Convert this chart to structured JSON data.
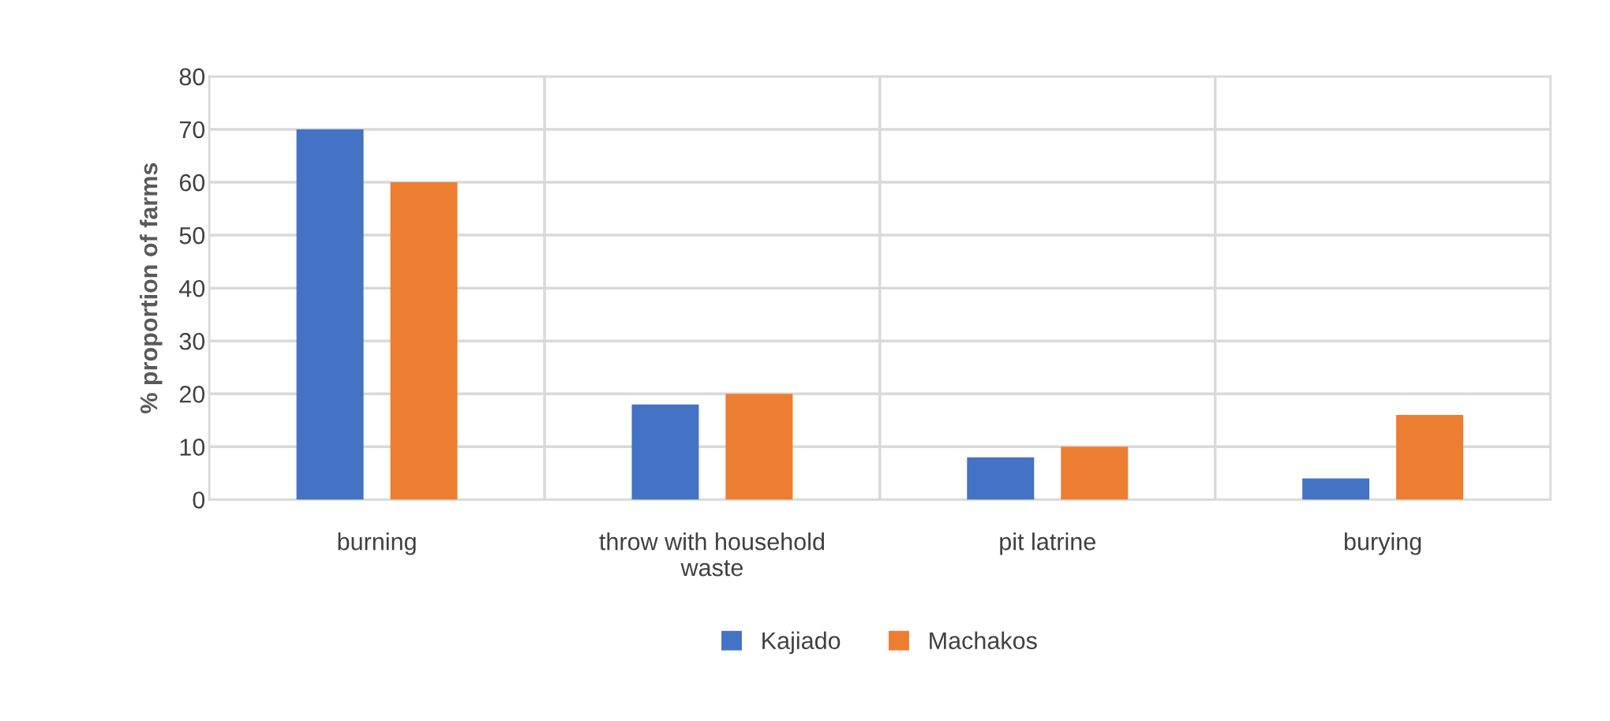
{
  "chart_data": {
    "type": "bar",
    "ylabel": "% proportion of farms",
    "categories": [
      "burning",
      "throw with household waste",
      "pit latrine",
      "burying"
    ],
    "series": [
      {
        "name": "Kajiado",
        "color": "#4472c4",
        "values": [
          70,
          18,
          8,
          4
        ]
      },
      {
        "name": "Machakos",
        "color": "#ed7d31",
        "values": [
          60,
          20,
          10,
          16
        ]
      }
    ],
    "ylim": [
      0,
      80
    ],
    "yticks": [
      0,
      10,
      20,
      30,
      40,
      50,
      60,
      70,
      80
    ],
    "grid": true,
    "legend": "bottom"
  }
}
